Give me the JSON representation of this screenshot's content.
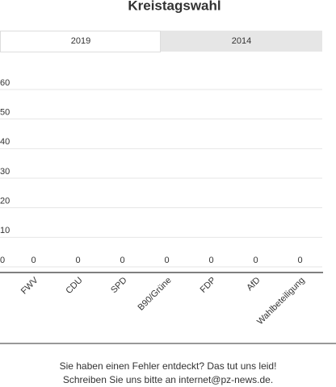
{
  "chart_data": {
    "type": "bar",
    "title": "Kreistagswahl",
    "tabs": [
      "2019",
      "2014"
    ],
    "categories": [
      "FWV",
      "CDU",
      "SPD",
      "B90/Grüne",
      "FDP",
      "AfD",
      "Wahlbeteiligung"
    ],
    "values": [
      0,
      0,
      0,
      0,
      0,
      0,
      0
    ],
    "color": "#4a7ab5",
    "ylim": [
      0,
      60
    ],
    "yticks": [
      0,
      10,
      20,
      30,
      40,
      50,
      60
    ],
    "grid": true
  },
  "footer": [
    "Sie haben einen Fehler entdeckt? Das tut uns leid!",
    "Schreiben Sie uns bitte an internet@pz-news.de."
  ]
}
